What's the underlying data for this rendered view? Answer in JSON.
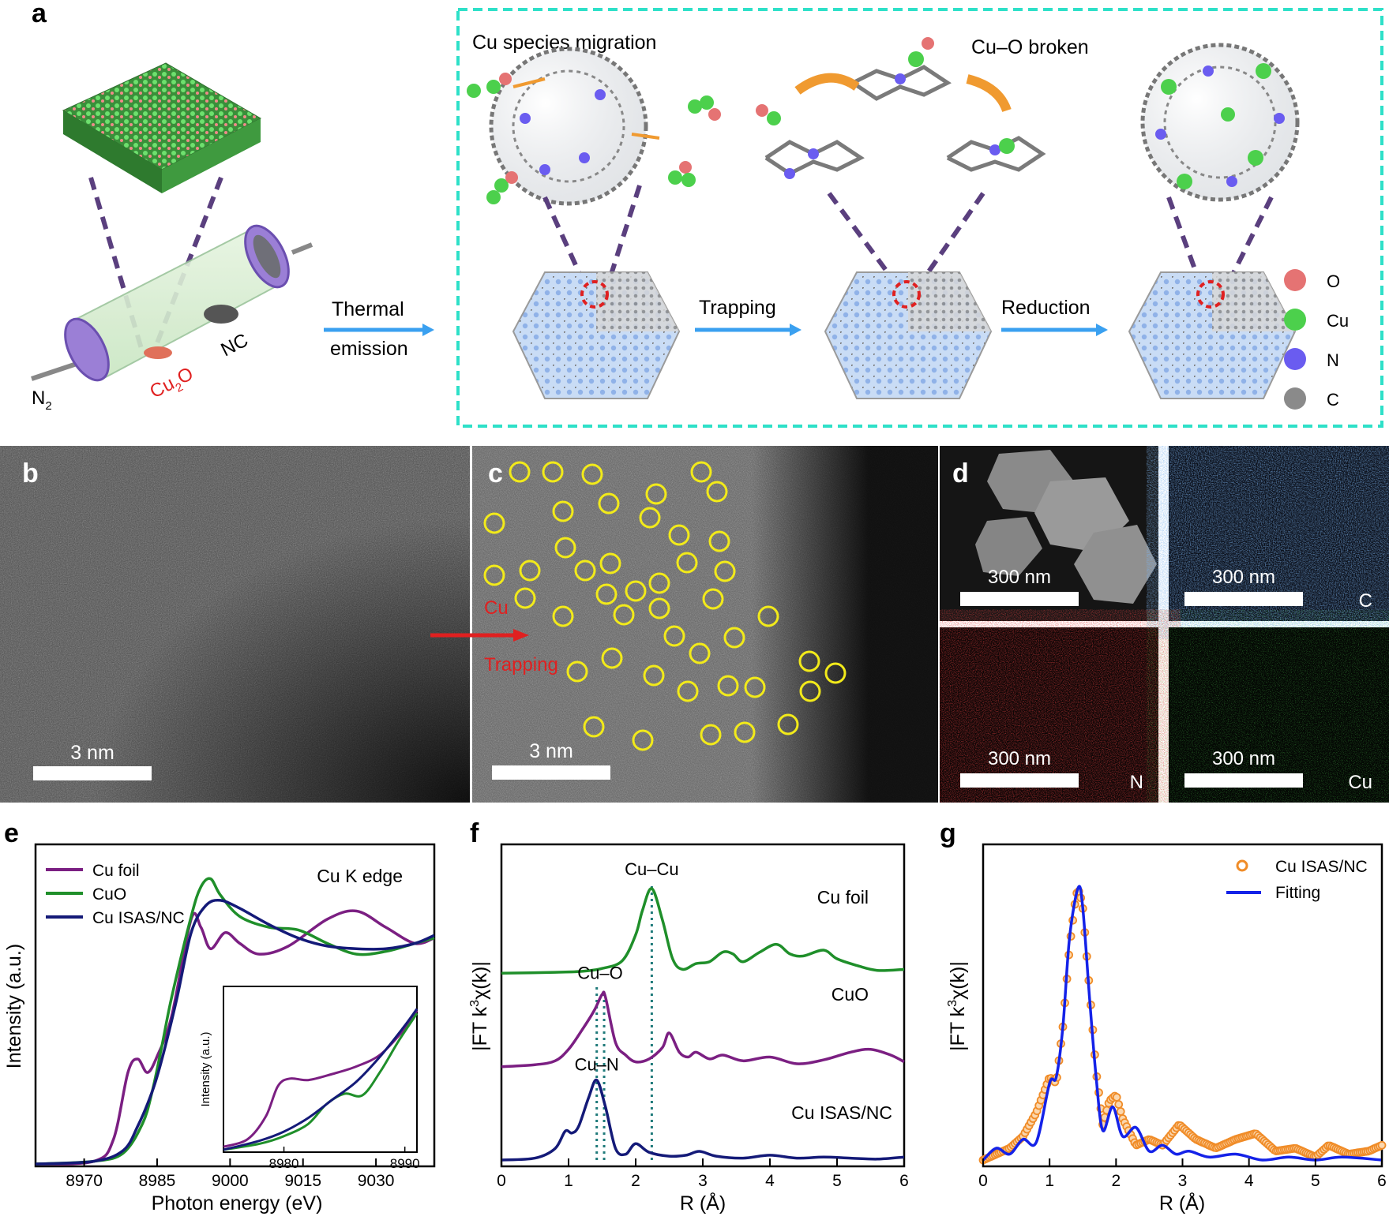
{
  "panel_a": {
    "letter": "a",
    "tube": {
      "gas": "N",
      "gas_sub": "2",
      "precursor_main": "Cu",
      "precursor_sub": "2",
      "precursor_tail": "O",
      "support": "NC"
    },
    "arrow1": {
      "line1": "Thermal",
      "line2": "emission"
    },
    "stage1_label": "Cu species migration",
    "stage2_label": "Cu–O broken",
    "arrow2": "Trapping",
    "arrow3": "Reduction",
    "legend": [
      {
        "label": "O",
        "color": "#e57373"
      },
      {
        "label": "Cu",
        "color": "#4cd04c"
      },
      {
        "label": "N",
        "color": "#6a5cf0"
      },
      {
        "label": "C",
        "color": "#8a8a8a"
      }
    ],
    "colors": {
      "dashed_box": "#2ee0c8",
      "arrow": "#3aa0f0",
      "tube": "#9b7fd6"
    }
  },
  "panel_b": {
    "letter": "b",
    "scale": "3 nm"
  },
  "panel_c": {
    "letter": "c",
    "scale": "3 nm",
    "annot1": "Cu",
    "annot2": "Trapping"
  },
  "panel_d": {
    "letter": "d",
    "tiles": [
      {
        "scale": "300 nm",
        "element": ""
      },
      {
        "scale": "300 nm",
        "element": "C"
      },
      {
        "scale": "300 nm",
        "element": "N"
      },
      {
        "scale": "300 nm",
        "element": "Cu"
      }
    ]
  },
  "chart_data": [
    {
      "panel": "e",
      "type": "line",
      "xlabel": "Photon energy (eV)",
      "ylabel": "Intensity (a.u.)",
      "annotation": "Cu K edge",
      "xlim": [
        8960,
        9042
      ],
      "xticks": [
        "8970",
        "8985",
        "9000",
        "9015",
        "9030"
      ],
      "legend_position": "top-left",
      "series": [
        {
          "name": "Cu foil",
          "color": "#7b1f82",
          "x": [
            8960,
            8972,
            8976,
            8979,
            8981,
            8983,
            8985,
            8988,
            8992,
            8994,
            8996,
            8999,
            9002,
            9006,
            9012,
            9020,
            9026,
            9032,
            9038,
            9042
          ],
          "y": [
            0.0,
            0.01,
            0.09,
            0.34,
            0.39,
            0.34,
            0.4,
            0.55,
            0.91,
            0.88,
            0.8,
            0.86,
            0.82,
            0.78,
            0.81,
            0.91,
            0.94,
            0.88,
            0.82,
            0.84
          ]
        },
        {
          "name": "CuO",
          "color": "#1f8f2a",
          "x": [
            8960,
            8972,
            8978,
            8982,
            8984,
            8986,
            8988,
            8992,
            8994,
            8996,
            8998,
            9002,
            9008,
            9014,
            9020,
            9026,
            9032,
            9038,
            9042
          ],
          "y": [
            0.0,
            0.01,
            0.04,
            0.15,
            0.27,
            0.44,
            0.62,
            0.92,
            1.03,
            1.06,
            1.0,
            0.92,
            0.88,
            0.87,
            0.82,
            0.78,
            0.79,
            0.82,
            0.84
          ]
        },
        {
          "name": "Cu ISAS/NC",
          "color": "#141a78",
          "x": [
            8960,
            8972,
            8978,
            8981,
            8984,
            8986,
            8989,
            8992,
            8995,
            8998,
            9002,
            9008,
            9014,
            9020,
            9026,
            9032,
            9038,
            9042
          ],
          "y": [
            0.0,
            0.01,
            0.05,
            0.14,
            0.27,
            0.39,
            0.61,
            0.86,
            0.96,
            0.98,
            0.95,
            0.89,
            0.84,
            0.81,
            0.8,
            0.8,
            0.82,
            0.85
          ]
        }
      ],
      "inset": {
        "ylabel": "Intensity (a.u.)",
        "xlim": [
          8975,
          8991
        ],
        "xticks": [
          "8980",
          "8990"
        ],
        "series": [
          {
            "name": "Cu foil",
            "color": "#7b1f82",
            "x": [
              8975,
              8977,
              8978.5,
              8979.5,
              8980.5,
              8982,
              8984,
              8986,
              8988,
              8990,
              8991
            ],
            "y": [
              0.02,
              0.07,
              0.22,
              0.42,
              0.47,
              0.46,
              0.5,
              0.55,
              0.63,
              0.8,
              0.92
            ]
          },
          {
            "name": "CuO",
            "color": "#1f8f2a",
            "x": [
              8975,
              8978,
              8980,
              8982,
              8983.5,
              8985,
              8986.5,
              8988,
              8989.5,
              8991
            ],
            "y": [
              0.0,
              0.04,
              0.09,
              0.17,
              0.3,
              0.37,
              0.36,
              0.52,
              0.72,
              0.9
            ]
          },
          {
            "name": "Cu ISAS/NC",
            "color": "#141a78",
            "x": [
              8975,
              8978,
              8980,
              8982,
              8984,
              8986,
              8988,
              8990,
              8991
            ],
            "y": [
              0.0,
              0.06,
              0.12,
              0.21,
              0.33,
              0.45,
              0.62,
              0.82,
              0.93
            ]
          }
        ]
      }
    },
    {
      "panel": "f",
      "type": "line",
      "xlabel": "R (Å)",
      "ylabel": "|FT k3χ(k)|",
      "ylabel_parts": {
        "a": "|FT k",
        "sup": "3",
        "b": "χ(k)|"
      },
      "xlim": [
        0,
        6
      ],
      "xticks": [
        "0",
        "1",
        "2",
        "3",
        "4",
        "5",
        "6"
      ],
      "vlines": [
        1.42,
        1.53,
        2.24
      ],
      "peak_labels": [
        {
          "text": "Cu–Cu",
          "x": 2.24
        },
        {
          "text": "Cu–O",
          "x": 1.53
        },
        {
          "text": "Cu–N",
          "x": 1.42
        }
      ],
      "series": [
        {
          "name": "Cu foil",
          "color": "#1f8f2a",
          "offset": 2.0,
          "x": [
            0,
            0.8,
            1.2,
            1.5,
            1.8,
            2.0,
            2.1,
            2.24,
            2.4,
            2.55,
            2.7,
            2.9,
            3.1,
            3.3,
            3.45,
            3.6,
            3.85,
            4.1,
            4.3,
            4.5,
            4.8,
            5.0,
            5.3,
            5.6,
            6.0
          ],
          "y": [
            0,
            0.01,
            0.02,
            0.05,
            0.13,
            0.4,
            0.65,
            0.88,
            0.55,
            0.15,
            0.04,
            0.1,
            0.12,
            0.22,
            0.2,
            0.12,
            0.22,
            0.3,
            0.2,
            0.18,
            0.24,
            0.15,
            0.08,
            0.03,
            0.04
          ]
        },
        {
          "name": "CuO",
          "color": "#7b1f82",
          "offset": 1.0,
          "x": [
            0,
            0.5,
            0.8,
            1.0,
            1.2,
            1.38,
            1.5,
            1.55,
            1.7,
            1.85,
            2.0,
            2.2,
            2.4,
            2.5,
            2.65,
            2.78,
            2.9,
            3.1,
            3.3,
            3.6,
            4.0,
            4.4,
            4.8,
            5.2,
            5.5,
            5.8,
            6.0
          ],
          "y": [
            0,
            0.02,
            0.06,
            0.18,
            0.38,
            0.58,
            0.75,
            0.72,
            0.25,
            0.12,
            0.05,
            0.08,
            0.2,
            0.35,
            0.15,
            0.1,
            0.15,
            0.08,
            0.12,
            0.06,
            0.1,
            0.03,
            0.07,
            0.15,
            0.18,
            0.12,
            0.05
          ]
        },
        {
          "name": "Cu ISAS/NC",
          "color": "#141a78",
          "offset": 0.0,
          "x": [
            0,
            0.5,
            0.8,
            0.95,
            1.05,
            1.15,
            1.3,
            1.42,
            1.55,
            1.7,
            1.85,
            2.0,
            2.2,
            2.5,
            2.75,
            2.95,
            3.2,
            3.6,
            4.0,
            4.4,
            4.8,
            5.2,
            5.6,
            6.0
          ],
          "y": [
            0,
            0.02,
            0.12,
            0.3,
            0.28,
            0.35,
            0.65,
            0.83,
            0.55,
            0.12,
            0.06,
            0.17,
            0.08,
            0.04,
            0.05,
            0.09,
            0.04,
            0.02,
            0.05,
            0.02,
            0.03,
            0.02,
            0.01,
            0.03
          ]
        }
      ]
    },
    {
      "panel": "g",
      "type": "line",
      "xlabel": "R (Å)",
      "ylabel": "|FT k3χ(k)|",
      "ylabel_parts": {
        "a": "|FT k",
        "sup": "3",
        "b": "χ(k)|"
      },
      "xlim": [
        0,
        6
      ],
      "xticks": [
        "0",
        "1",
        "2",
        "3",
        "4",
        "5",
        "6"
      ],
      "legend_position": "top-right",
      "series": [
        {
          "name": "Cu ISAS/NC",
          "style": "scatter",
          "color": "#f08c28",
          "x": [
            0,
            0.2,
            0.4,
            0.6,
            0.8,
            1.0,
            1.1,
            1.2,
            1.3,
            1.4,
            1.45,
            1.5,
            1.6,
            1.7,
            1.8,
            1.9,
            2.0,
            2.1,
            2.3,
            2.5,
            2.7,
            2.95,
            3.2,
            3.5,
            3.8,
            4.1,
            4.4,
            4.7,
            5.0,
            5.2,
            5.5,
            5.8,
            6.0
          ],
          "y": [
            0,
            0.02,
            0.04,
            0.08,
            0.16,
            0.28,
            0.26,
            0.45,
            0.72,
            0.9,
            0.91,
            0.85,
            0.58,
            0.3,
            0.12,
            0.2,
            0.22,
            0.14,
            0.05,
            0.07,
            0.05,
            0.12,
            0.07,
            0.04,
            0.07,
            0.09,
            0.03,
            0.04,
            0.01,
            0.05,
            0.02,
            0.03,
            0.05
          ]
        },
        {
          "name": "Fitting",
          "style": "line",
          "color": "#1422e8",
          "x": [
            0,
            0.2,
            0.4,
            0.6,
            0.8,
            1.0,
            1.1,
            1.2,
            1.3,
            1.43,
            1.5,
            1.6,
            1.7,
            1.8,
            1.95,
            2.1,
            2.3,
            2.5,
            2.7,
            2.9,
            3.1,
            3.4,
            3.8,
            4.2,
            4.6,
            5.0,
            5.4,
            6.0
          ],
          "y": [
            0,
            0.04,
            0.02,
            0.07,
            0.06,
            0.26,
            0.28,
            0.45,
            0.75,
            0.92,
            0.85,
            0.55,
            0.28,
            0.1,
            0.18,
            0.08,
            0.11,
            0.03,
            0.05,
            0.02,
            0.03,
            0.01,
            0.02,
            0.0,
            0.01,
            0.0,
            0.01,
            0.0
          ]
        }
      ]
    }
  ]
}
